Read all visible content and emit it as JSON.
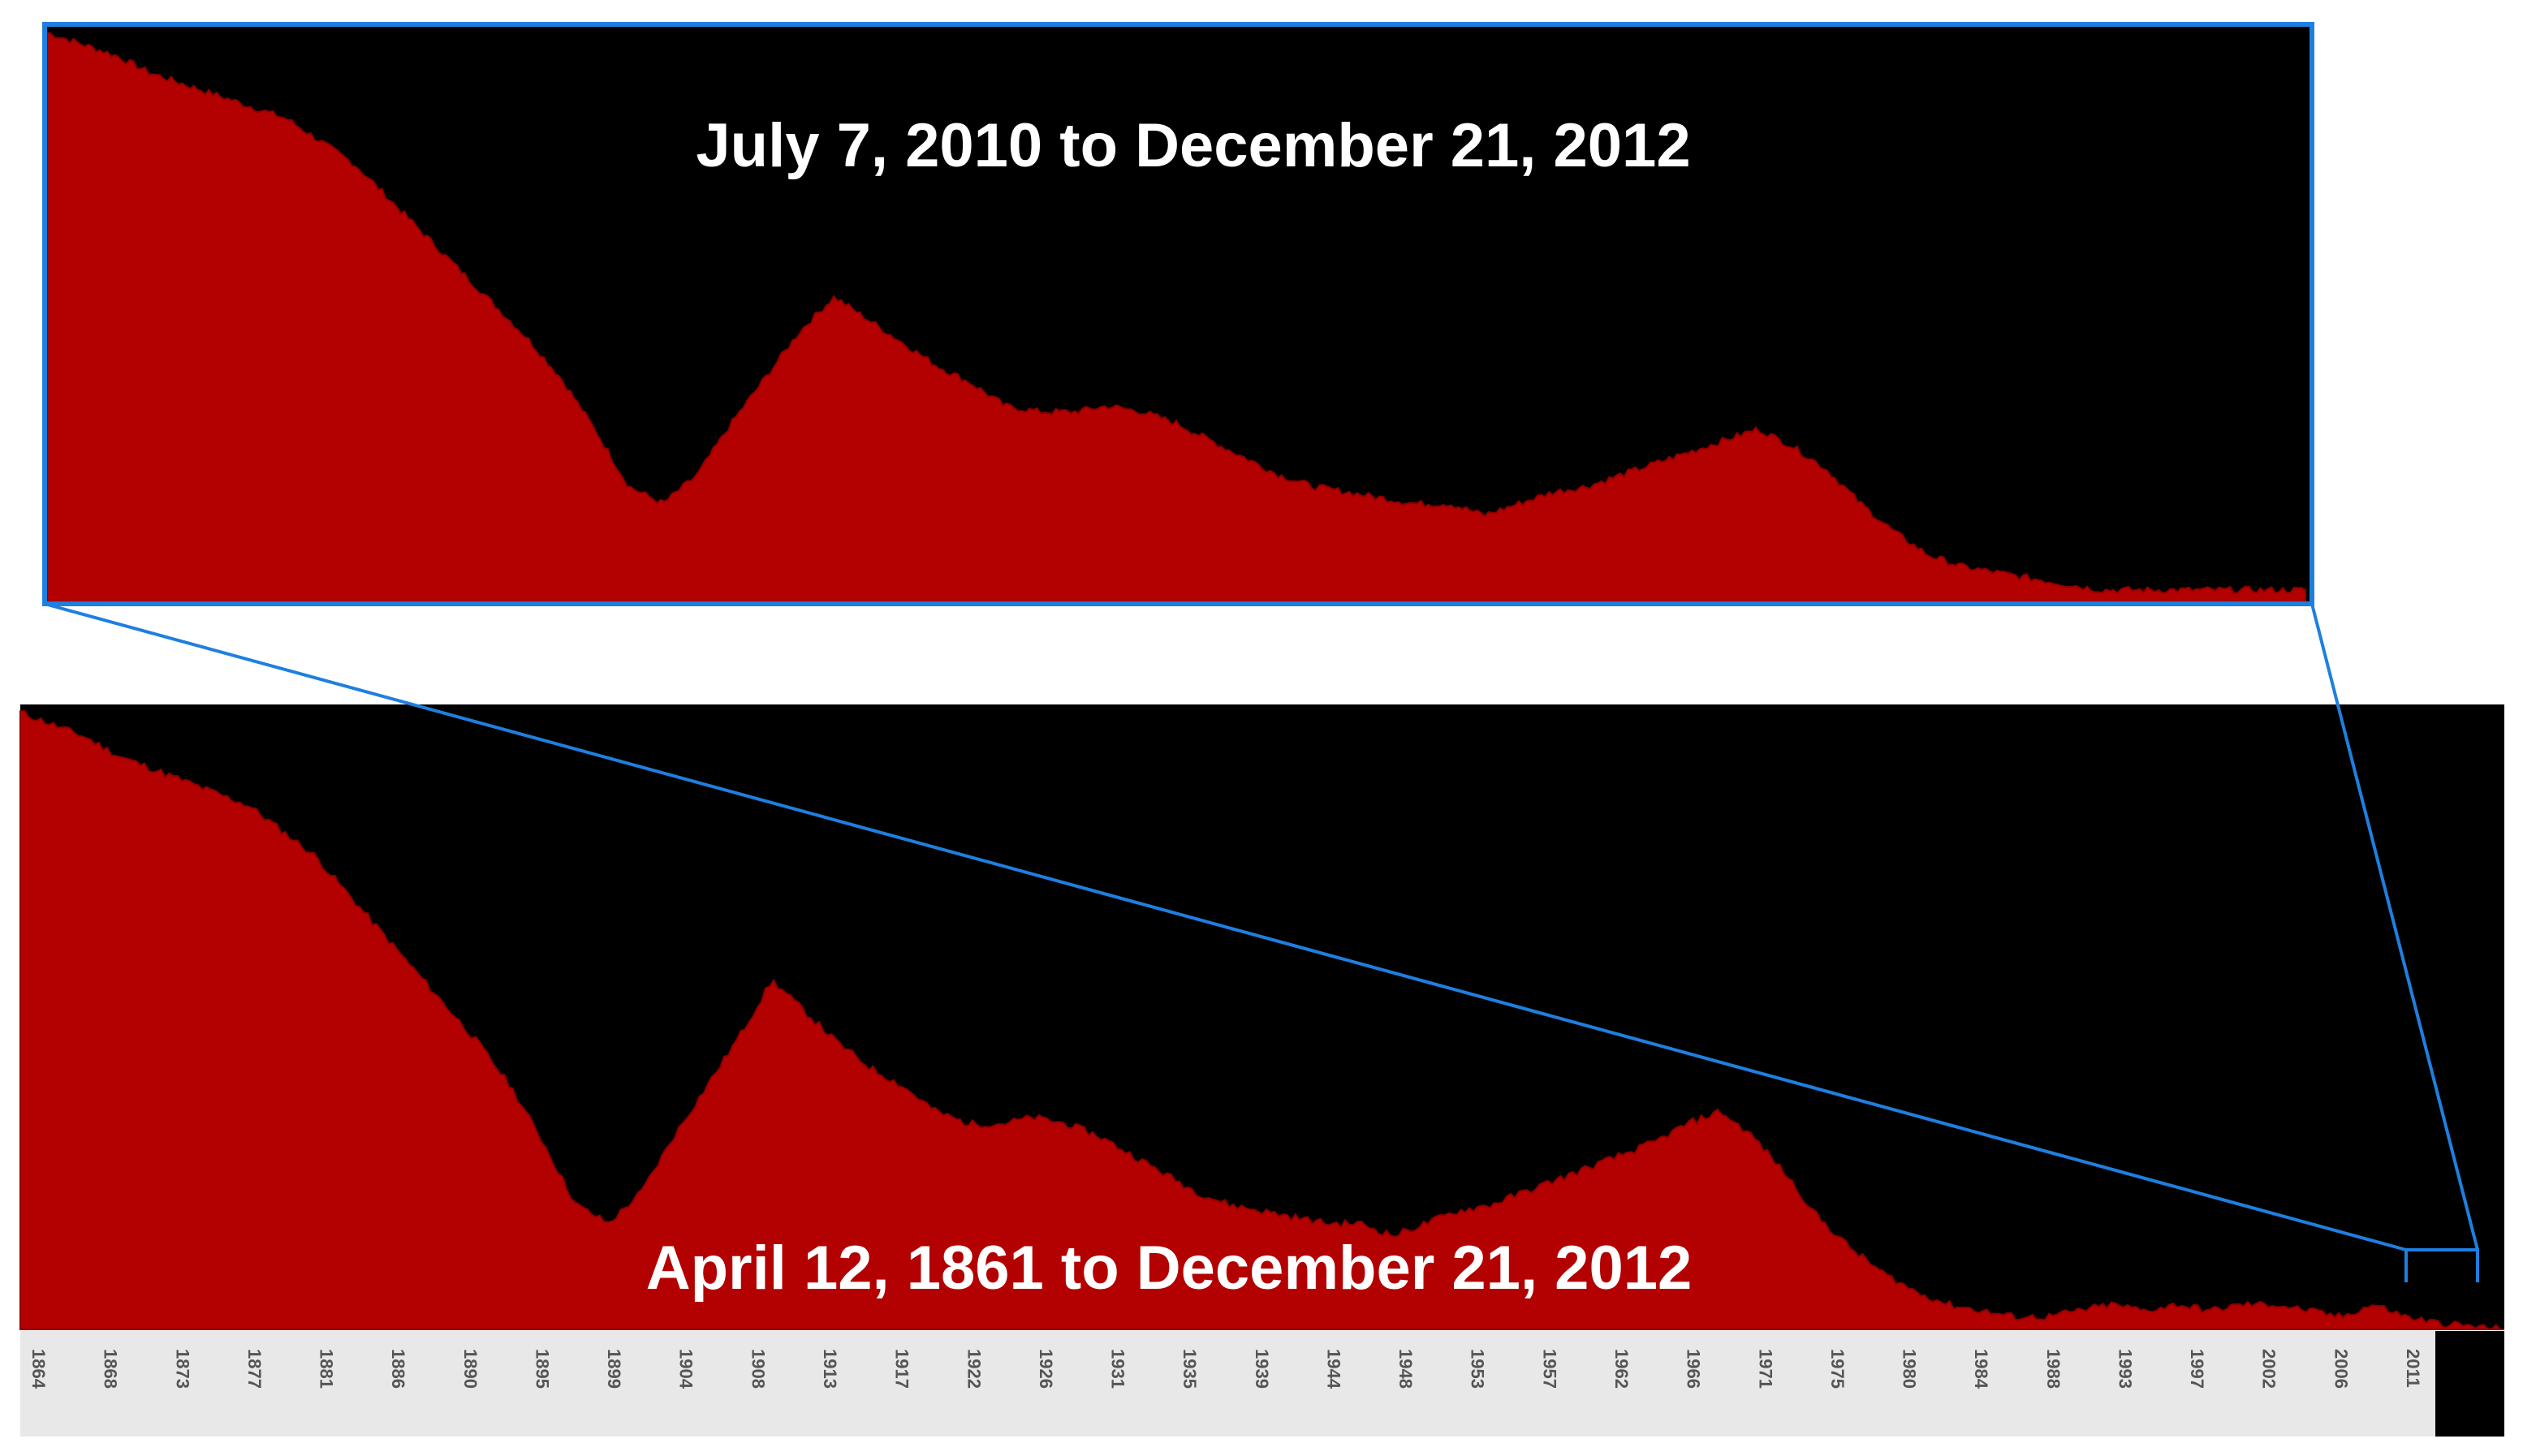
{
  "chart_data": [
    {
      "type": "area",
      "title": "July 7, 2010 to December 21, 2012",
      "color": "#b30000",
      "background": "#000000",
      "frame_color": "#1f7fe0",
      "grid": false,
      "legend": "none",
      "values": [
        0.99,
        0.97,
        0.95,
        0.92,
        0.9,
        0.88,
        0.86,
        0.84,
        0.8,
        0.76,
        0.7,
        0.64,
        0.58,
        0.52,
        0.46,
        0.39,
        0.3,
        0.2,
        0.17,
        0.22,
        0.31,
        0.39,
        0.47,
        0.53,
        0.49,
        0.45,
        0.41,
        0.38,
        0.34,
        0.33,
        0.33,
        0.34,
        0.33,
        0.31,
        0.28,
        0.25,
        0.22,
        0.2,
        0.19,
        0.18,
        0.17,
        0.17,
        0.15,
        0.17,
        0.19,
        0.2,
        0.22,
        0.24,
        0.26,
        0.28,
        0.3,
        0.27,
        0.23,
        0.17,
        0.12,
        0.08,
        0.06,
        0.05,
        0.04,
        0.03,
        0.02,
        0.02,
        0.02,
        0.02,
        0.02,
        0.02,
        0.02
      ]
    },
    {
      "type": "area",
      "title": "April 12, 1861 to December 21, 2012",
      "color": "#b30000",
      "background": "#000000",
      "grid": false,
      "legend": "none",
      "x_tick_labels": [
        "1864",
        "1868",
        "1873",
        "1877",
        "1881",
        "1886",
        "1890",
        "1895",
        "1899",
        "1904",
        "1908",
        "1913",
        "1917",
        "1922",
        "1926",
        "1931",
        "1935",
        "1939",
        "1944",
        "1948",
        "1953",
        "1957",
        "1962",
        "1966",
        "1971",
        "1975",
        "1980",
        "1984",
        "1988",
        "1993",
        "1997",
        "2002",
        "2006",
        "2011"
      ],
      "values": [
        0.99,
        0.97,
        0.95,
        0.92,
        0.9,
        0.88,
        0.86,
        0.84,
        0.8,
        0.76,
        0.7,
        0.64,
        0.58,
        0.52,
        0.46,
        0.39,
        0.3,
        0.2,
        0.17,
        0.22,
        0.31,
        0.39,
        0.47,
        0.56,
        0.51,
        0.46,
        0.42,
        0.39,
        0.35,
        0.33,
        0.33,
        0.34,
        0.33,
        0.31,
        0.28,
        0.25,
        0.22,
        0.2,
        0.19,
        0.18,
        0.17,
        0.17,
        0.15,
        0.17,
        0.19,
        0.2,
        0.22,
        0.24,
        0.26,
        0.28,
        0.3,
        0.33,
        0.35,
        0.31,
        0.25,
        0.18,
        0.13,
        0.09,
        0.06,
        0.04,
        0.03,
        0.02,
        0.02,
        0.03,
        0.04,
        0.03,
        0.04,
        0.03,
        0.04,
        0.04,
        0.03,
        0.02,
        0.04,
        0.02,
        0.01,
        0.005,
        0.0
      ]
    }
  ]
}
